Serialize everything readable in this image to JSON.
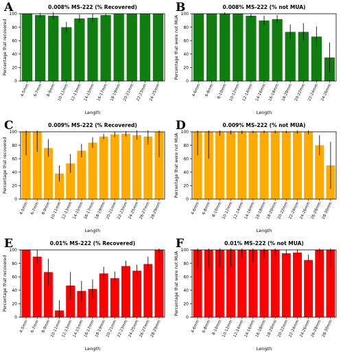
{
  "chart_data": [
    {
      "panel_label": "A",
      "type": "bar",
      "title": "0.008% MS-222 (% Recovered)",
      "xlabel": "Length",
      "ylabel": "Percentage that recovered",
      "ylim": [
        0,
        100
      ],
      "yticks": [
        0,
        20,
        40,
        60,
        80,
        100
      ],
      "color": "#107d10",
      "categories": [
        "4-5mm",
        "6-7mm",
        "8-9mm",
        "10-11mm",
        "12-13mm",
        "14-15mm",
        "16-17mm",
        "18-19mm",
        "20-21mm",
        "22-23mm",
        "24-25mm"
      ],
      "values": [
        100,
        98,
        97,
        80,
        93,
        94,
        98,
        100,
        100,
        100,
        100
      ],
      "errors": [
        0,
        3,
        5,
        8,
        6,
        6,
        2,
        0,
        0,
        0,
        0
      ]
    },
    {
      "panel_label": "B",
      "type": "bar",
      "title": "0.008% MS-222 (% not MUA)",
      "xlabel": "Length",
      "ylabel": "Percentage that were not MUA",
      "ylim": [
        0,
        100
      ],
      "yticks": [
        0,
        20,
        40,
        60,
        80,
        100
      ],
      "color": "#107d10",
      "categories": [
        "4-6mm",
        "6-8mm",
        "8-10mm",
        "10-12mm",
        "12-14mm",
        "14-16mm",
        "16-18mm",
        "18-20mm",
        "20-22mm",
        "22-24mm",
        "24-26mm"
      ],
      "values": [
        100,
        100,
        100,
        100,
        97,
        90,
        92,
        73,
        73,
        66,
        35
      ],
      "errors": [
        0,
        0,
        2,
        0,
        3,
        7,
        6,
        11,
        13,
        15,
        22
      ]
    },
    {
      "panel_label": "C",
      "type": "bar",
      "title": "0.009% MS-222 (% Recovered)",
      "xlabel": "Length",
      "ylabel": "Percentage that recovered",
      "ylim": [
        0,
        100
      ],
      "yticks": [
        0,
        20,
        40,
        60,
        80,
        100
      ],
      "color": "#ffaa00",
      "categories": [
        "4-5mm",
        "6-7mm",
        "8-9mm",
        "10-11mm",
        "12-13mm",
        "14-15mm",
        "16-17mm",
        "18-19mm",
        "20-21mm",
        "22-23mm",
        "24-25mm",
        "26-27mm",
        "28-29mm"
      ],
      "values": [
        100,
        100,
        76,
        38,
        53,
        72,
        84,
        93,
        96,
        97,
        95,
        93,
        100
      ],
      "errors": [
        35,
        30,
        13,
        12,
        14,
        10,
        8,
        4,
        4,
        4,
        7,
        12,
        38
      ]
    },
    {
      "panel_label": "D",
      "type": "bar",
      "title": "0.009% MS-222 (% not MUA)",
      "xlabel": "Length",
      "ylabel": "Percentage that were not MUA",
      "ylim": [
        0,
        100
      ],
      "yticks": [
        0,
        20,
        40,
        60,
        80,
        100
      ],
      "color": "#ffaa00",
      "categories": [
        "4-6mm",
        "6-8mm",
        "8-10mm",
        "10-12mm",
        "12-14mm",
        "14-16mm",
        "16-18mm",
        "18-20mm",
        "20-22mm",
        "22-24mm",
        "24-26mm",
        "26-28mm",
        "28-30mm"
      ],
      "values": [
        100,
        100,
        100,
        100,
        100,
        100,
        100,
        100,
        100,
        100,
        100,
        80,
        50
      ],
      "errors": [
        35,
        40,
        6,
        4,
        3,
        2,
        2,
        2,
        2,
        3,
        4,
        15,
        35
      ]
    },
    {
      "panel_label": "E",
      "type": "bar",
      "title": "0.01% MS-222 (% Recovered)",
      "xlabel": "Length",
      "ylabel": "Percentage that recovered",
      "ylim": [
        0,
        100
      ],
      "yticks": [
        0,
        20,
        40,
        60,
        80,
        100
      ],
      "color": "#ff0000",
      "categories": [
        "4-5mm",
        "6-7mm",
        "8-9mm",
        "10-11mm",
        "12-13mm",
        "14-15mm",
        "16-17mm",
        "18-19mm",
        "20-21mm",
        "22-23mm",
        "24-25mm",
        "26-27mm",
        "28-29mm"
      ],
      "values": [
        100,
        90,
        67,
        10,
        47,
        39,
        42,
        65,
        58,
        76,
        69,
        79,
        100
      ],
      "errors": [
        0,
        10,
        20,
        15,
        20,
        15,
        14,
        10,
        10,
        8,
        9,
        11,
        15
      ]
    },
    {
      "panel_label": "F",
      "type": "bar",
      "title": "0.01% MS-222 (% not MUA)",
      "xlabel": "Length",
      "ylabel": "Percentage that were not MUA",
      "ylim": [
        0,
        100
      ],
      "yticks": [
        0,
        20,
        40,
        60,
        80,
        100
      ],
      "color": "#ff0000",
      "categories": [
        "4-6mm",
        "6-8mm",
        "8-10mm",
        "10-12mm",
        "12-14mm",
        "14-16mm",
        "16-18mm",
        "18-20mm",
        "20-22mm",
        "22-24mm",
        "24-26mm",
        "26-28mm",
        "28-30mm"
      ],
      "values": [
        100,
        100,
        100,
        100,
        100,
        100,
        100,
        100,
        95,
        96,
        85,
        100,
        100
      ],
      "errors": [
        28,
        28,
        25,
        25,
        12,
        18,
        12,
        10,
        5,
        4,
        8,
        15,
        28
      ]
    }
  ]
}
